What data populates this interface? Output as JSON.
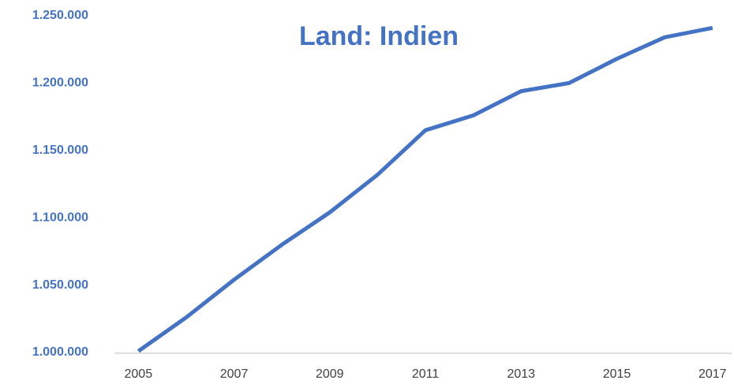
{
  "chart_data": {
    "type": "line",
    "title": "Land: Indien",
    "x": [
      2005,
      2006,
      2007,
      2008,
      2009,
      2010,
      2011,
      2012,
      2013,
      2014,
      2015,
      2016,
      2017
    ],
    "series": [
      {
        "name": "Indien",
        "color": "#4472c4",
        "values": [
          1001000,
          1026000,
          1054000,
          1080000,
          1104000,
          1132000,
          1165000,
          1176000,
          1194000,
          1200000,
          1218000,
          1234000,
          1241000
        ]
      }
    ],
    "xlim": [
      2004.5,
      2017.4
    ],
    "xticks": [
      2005,
      2007,
      2009,
      2011,
      2013,
      2015,
      2017
    ],
    "ylim": [
      1000000,
      1250000
    ],
    "yticks": [
      {
        "value": 1000000,
        "label": "1.000.000"
      },
      {
        "value": 1050000,
        "label": "1.050.000"
      },
      {
        "value": 1100000,
        "label": "1.100.000"
      },
      {
        "value": 1150000,
        "label": "1.150.000"
      },
      {
        "value": 1200000,
        "label": "1.200.000"
      },
      {
        "value": 1250000,
        "label": "1.250.000"
      }
    ],
    "grid": false
  }
}
